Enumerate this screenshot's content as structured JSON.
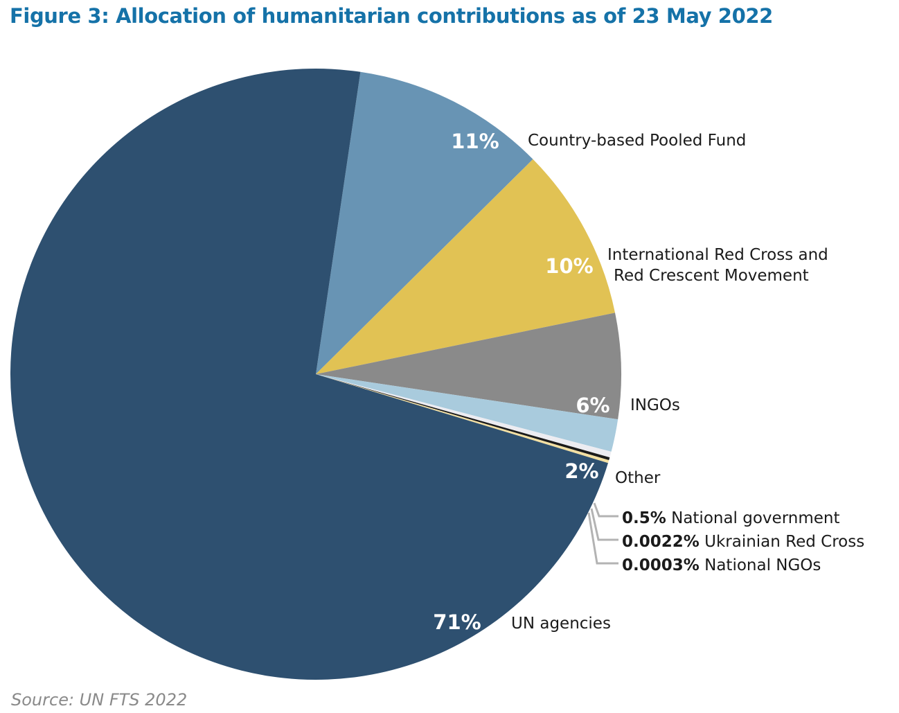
{
  "title": "Figure 3: Allocation of humanitarian contributions as of 23 May 2022",
  "source": "Source: UN FTS 2022",
  "chart_data": {
    "type": "pie",
    "title": "Figure 3: Allocation of humanitarian contributions as of 23 May 2022",
    "slices": [
      {
        "name": "Country-based Pooled Fund",
        "value": 11,
        "value_label": "11%",
        "color": "#6894b4"
      },
      {
        "name": [
          "International Red Cross and",
          "Red Crescent Movement"
        ],
        "value": 10,
        "value_label": "10%",
        "color": "#e1c254"
      },
      {
        "name": "INGOs",
        "value": 6,
        "value_label": "6%",
        "color": "#8a8a8a"
      },
      {
        "name": "Other",
        "value": 2,
        "value_label": "2%",
        "color": "#a9cbdd"
      },
      {
        "name": "National government",
        "value": 0.5,
        "value_label": "0.5%",
        "color": "#ececf1"
      },
      {
        "name": "Ukrainian Red Cross",
        "value": 0.0022,
        "value_label": "0.0022%",
        "color": "#1a1a1a"
      },
      {
        "name": "National NGOs",
        "value": 0.0003,
        "value_label": "0.0003%",
        "color": "#f2dfa2"
      },
      {
        "name": "UN agencies",
        "value": 71,
        "value_label": "71%",
        "color": "#2e5070"
      }
    ]
  }
}
